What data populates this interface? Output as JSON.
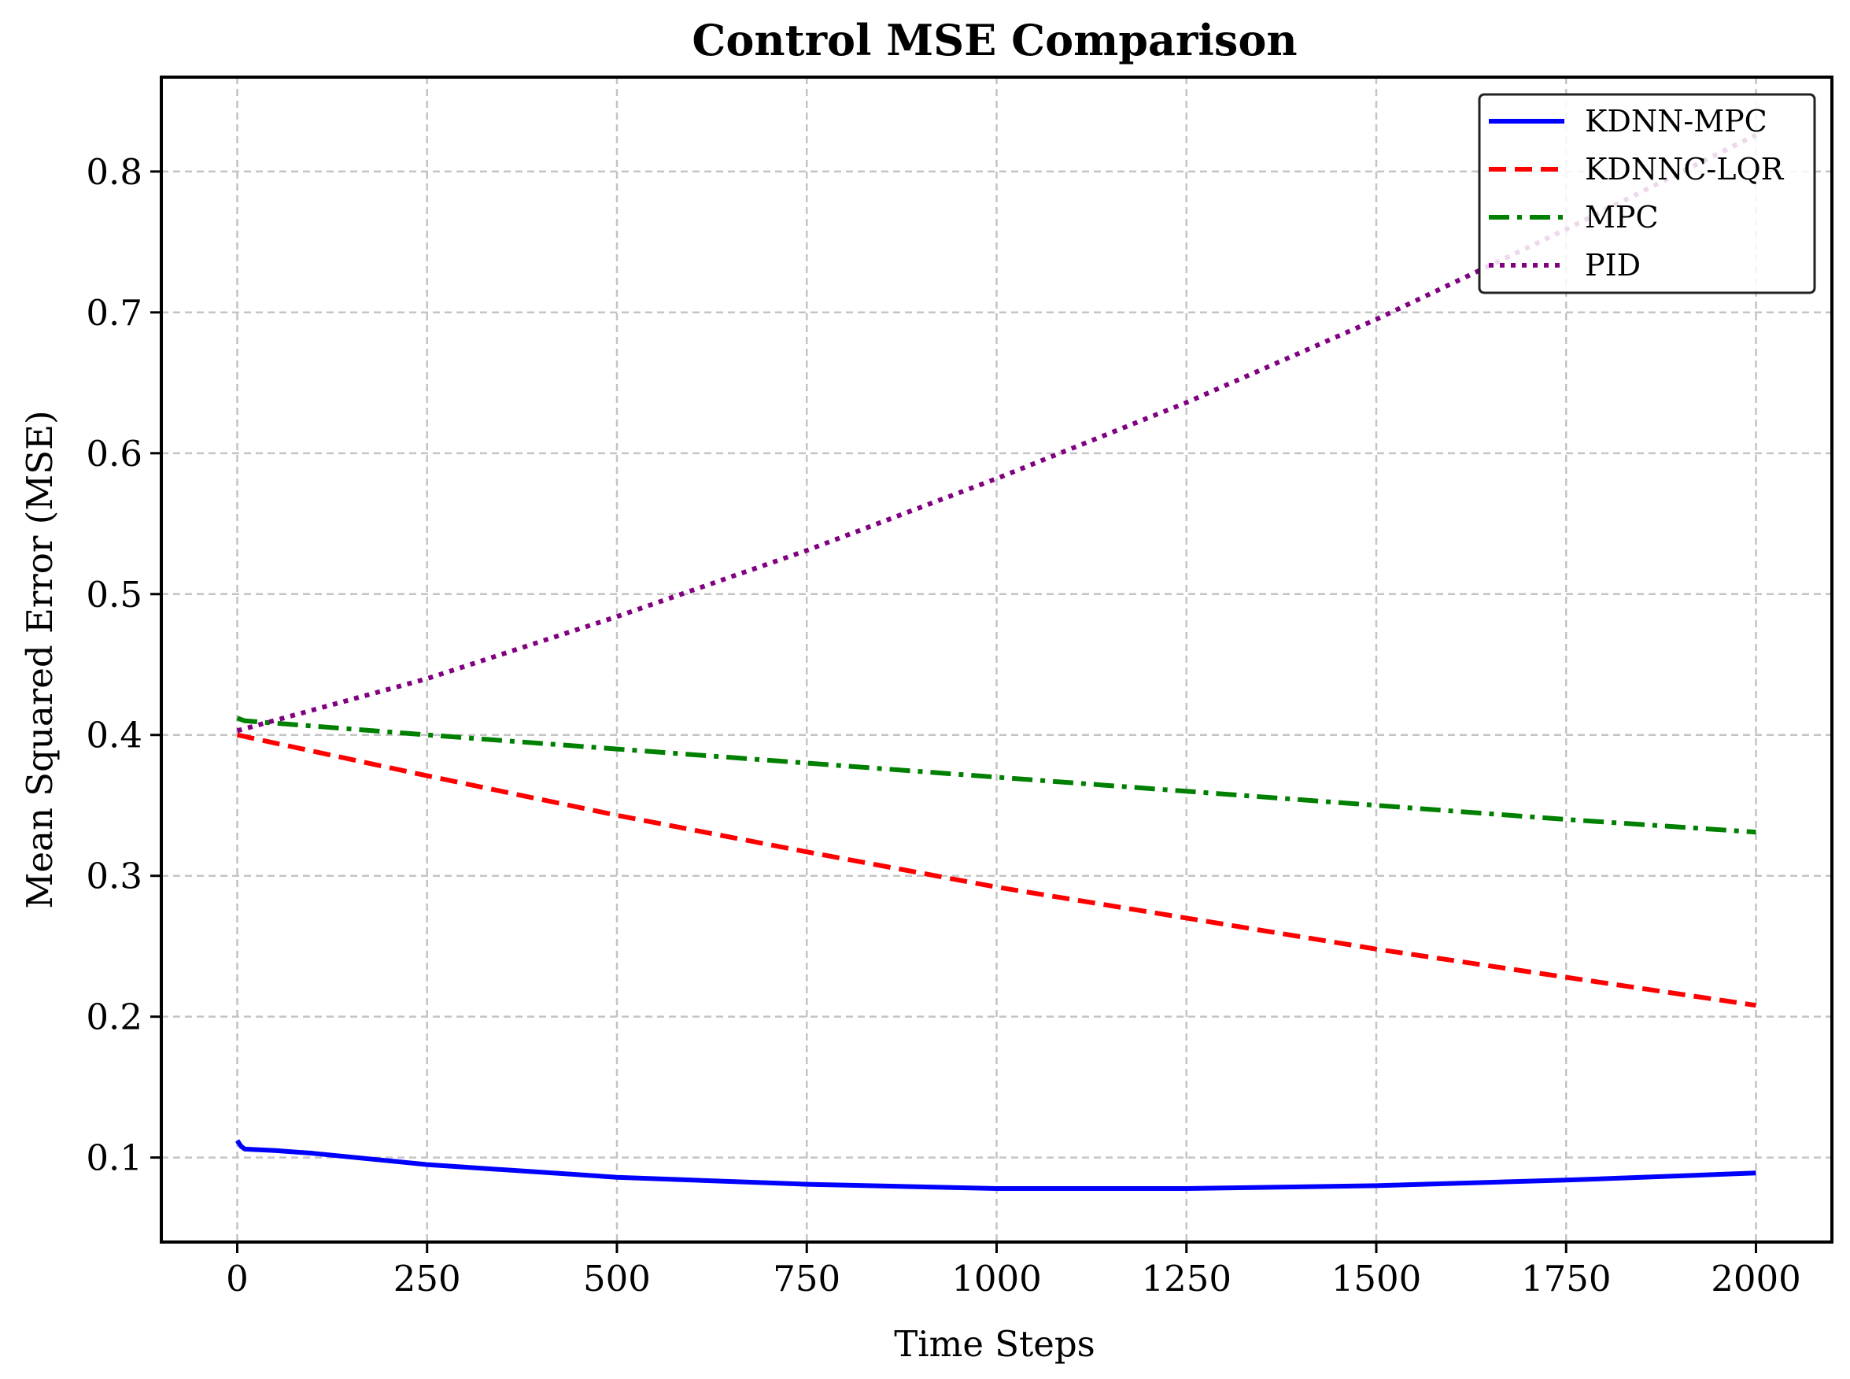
{
  "chart_data": {
    "type": "line",
    "title": "Control MSE Comparison",
    "xlabel": "Time Steps",
    "ylabel": "Mean Squared Error (MSE)",
    "xlim": [
      -100,
      2100
    ],
    "ylim": [
      0.04,
      0.867
    ],
    "xticks": [
      0,
      250,
      500,
      750,
      1000,
      1250,
      1500,
      1750,
      2000
    ],
    "xtick_labels": [
      "0",
      "250",
      "500",
      "750",
      "1000",
      "1250",
      "1500",
      "1750",
      "2000"
    ],
    "yticks": [
      0.1,
      0.2,
      0.3,
      0.4,
      0.5,
      0.6,
      0.7,
      0.8
    ],
    "ytick_labels": [
      "0.1",
      "0.2",
      "0.3",
      "0.4",
      "0.5",
      "0.6",
      "0.7",
      "0.8"
    ],
    "grid": true,
    "legend_position": "top-right",
    "series": [
      {
        "name": "KDNN-MPC",
        "color": "#0000ff",
        "style": "solid",
        "x": [
          0,
          5,
          10,
          50,
          100,
          250,
          500,
          750,
          1000,
          1150,
          1250,
          1500,
          1750,
          2000
        ],
        "y": [
          0.112,
          0.108,
          0.106,
          0.105,
          0.103,
          0.095,
          0.086,
          0.081,
          0.078,
          0.078,
          0.078,
          0.08,
          0.084,
          0.089
        ]
      },
      {
        "name": "KDNNC-LQR",
        "color": "#ff0000",
        "style": "dashed",
        "x": [
          0,
          250,
          500,
          750,
          1000,
          1250,
          1500,
          1750,
          2000
        ],
        "y": [
          0.4,
          0.371,
          0.343,
          0.317,
          0.292,
          0.27,
          0.248,
          0.228,
          0.208
        ]
      },
      {
        "name": "MPC",
        "color": "#008000",
        "style": "dashdot",
        "x": [
          0,
          10,
          250,
          500,
          750,
          1000,
          1250,
          1500,
          1750,
          2000
        ],
        "y": [
          0.412,
          0.41,
          0.4,
          0.39,
          0.38,
          0.37,
          0.36,
          0.35,
          0.34,
          0.331
        ]
      },
      {
        "name": "PID",
        "color": "#800080",
        "style": "dotted",
        "x": [
          0,
          250,
          500,
          750,
          1000,
          1250,
          1500,
          1750,
          2000
        ],
        "y": [
          0.403,
          0.44,
          0.484,
          0.531,
          0.582,
          0.636,
          0.695,
          0.759,
          0.826
        ]
      }
    ]
  }
}
